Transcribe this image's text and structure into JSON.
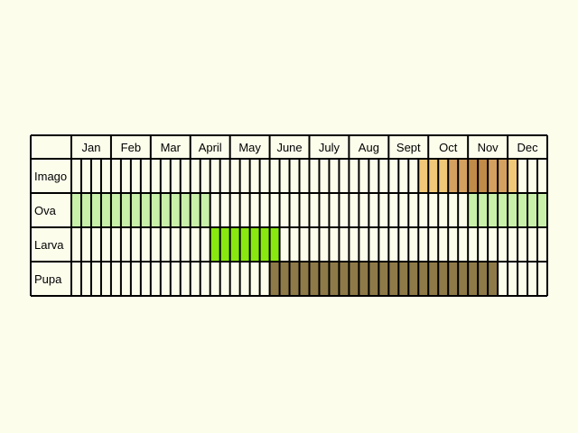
{
  "chart_data": {
    "type": "table",
    "title": "",
    "months": [
      "Jan",
      "Feb",
      "Mar",
      "April",
      "May",
      "June",
      "July",
      "Aug",
      "Sept",
      "Oct",
      "Nov",
      "Dec"
    ],
    "quarters_per_month": 4,
    "rows": [
      {
        "name": "Imago",
        "color": "#f0c878",
        "segments": [
          {
            "start": 8.75,
            "end": 9.5,
            "color": "#f0c878"
          },
          {
            "start": 9.5,
            "end": 10.0,
            "color": "#d4a060"
          },
          {
            "start": 10.0,
            "end": 10.5,
            "color": "#c08a48"
          },
          {
            "start": 10.5,
            "end": 11.0,
            "color": "#d4a060"
          },
          {
            "start": 11.0,
            "end": 11.25,
            "color": "#f0c878"
          }
        ]
      },
      {
        "name": "Ova",
        "color": "#c8f0a8",
        "segments": [
          {
            "start": 0.0,
            "end": 3.5,
            "color": "#c8f0a8"
          },
          {
            "start": 10.0,
            "end": 12.0,
            "color": "#c8f0a8"
          }
        ]
      },
      {
        "name": "Larva",
        "color": "#88e810",
        "segments": [
          {
            "start": 3.5,
            "end": 5.25,
            "color": "#88e810"
          }
        ]
      },
      {
        "name": "Pupa",
        "color": "#8e7a48",
        "segments": [
          {
            "start": 5.0,
            "end": 10.75,
            "color": "#8e7a48"
          }
        ]
      }
    ]
  }
}
